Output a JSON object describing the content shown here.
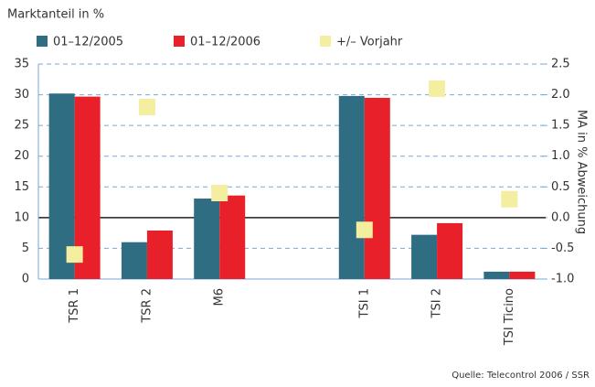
{
  "chart_data": {
    "type": "bar",
    "title": "Marktanteil in %",
    "y2_label": "MA in % Abweichung",
    "source": "Quelle: Telecontrol 2006 / SSR",
    "categories": [
      "TSR 1",
      "TSR 2",
      "M6",
      null,
      "TSI 1",
      "TSI 2",
      "TSI Ticino"
    ],
    "series": [
      {
        "name": "01–12/2005",
        "color": "#2e6d82",
        "values": [
          30.2,
          6.0,
          13.1,
          null,
          29.8,
          7.2,
          1.2
        ]
      },
      {
        "name": "01–12/2006",
        "color": "#e8202a",
        "values": [
          29.7,
          7.9,
          13.6,
          null,
          29.5,
          9.1,
          1.2
        ]
      },
      {
        "name": "+/– Vorjahr",
        "color": "#f3eea0",
        "type": "scatter",
        "axis": "y2",
        "values": [
          -0.6,
          1.8,
          0.4,
          null,
          -0.2,
          2.1,
          0.3
        ]
      }
    ],
    "ylim": [
      0,
      35
    ],
    "yticks": [
      0,
      5,
      10,
      15,
      20,
      25,
      30,
      35
    ],
    "y2lim": [
      -1,
      2.5
    ],
    "y2ticks": [
      {
        "value": -1,
        "label": "-1.0"
      },
      -0.5,
      {
        "value": 0,
        "label": "0.0"
      },
      0.5,
      {
        "value": 1,
        "label": "1.0"
      },
      1.5,
      {
        "value": 2,
        "label": "2.0"
      },
      2.5
    ],
    "grid": true
  }
}
